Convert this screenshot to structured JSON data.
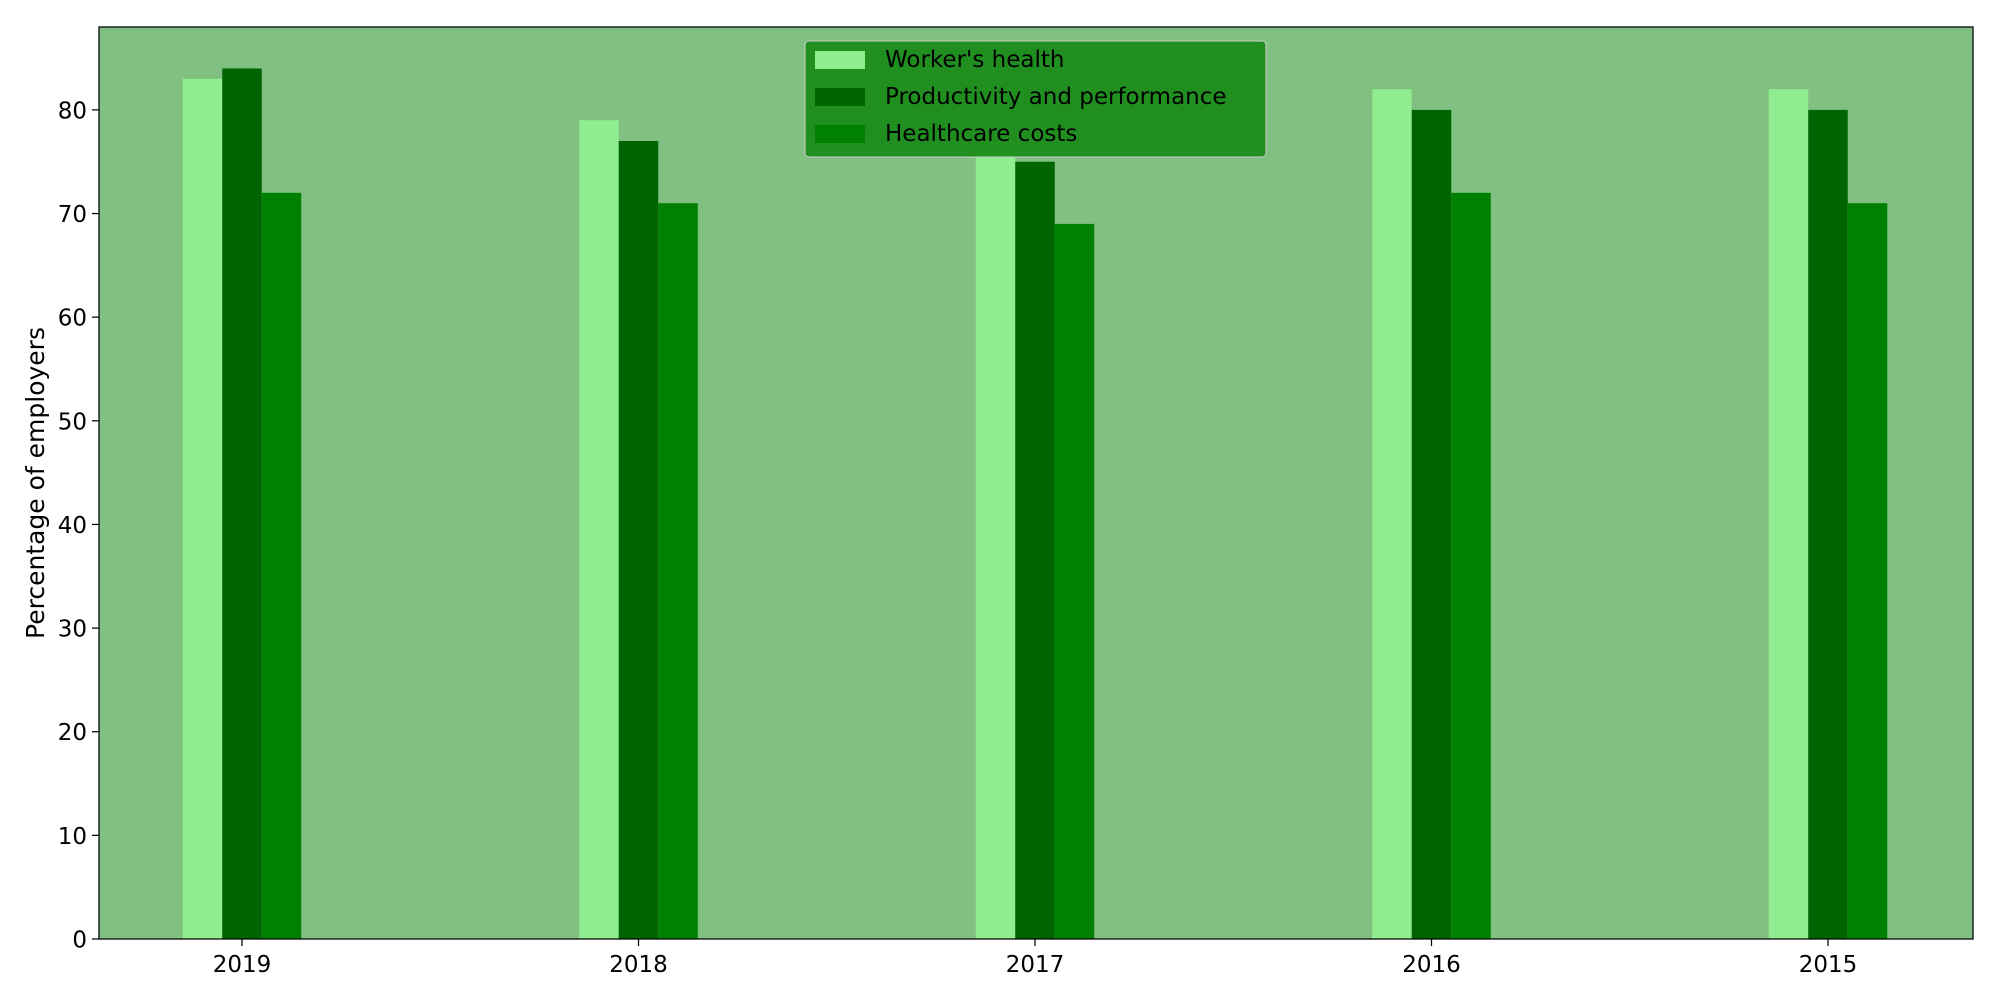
{
  "chart_data": {
    "type": "bar",
    "title": "",
    "xlabel": "",
    "ylabel": "Percentage of employers",
    "categories": [
      "2019",
      "2018",
      "2017",
      "2016",
      "2015"
    ],
    "ylim": [
      0,
      88
    ],
    "yticks": [
      0,
      10,
      20,
      30,
      40,
      50,
      60,
      70,
      80
    ],
    "grid": false,
    "legend_position": "top-center",
    "plot_background": "#80c080",
    "legend_background": "#1a8c1a",
    "series": [
      {
        "name": "Worker's health",
        "color": "#90ee90",
        "values": [
          83,
          79,
          77,
          82,
          82
        ]
      },
      {
        "name": "Productivity and performance",
        "color": "#006400",
        "values": [
          84,
          77,
          75,
          80,
          80
        ]
      },
      {
        "name": "Healthcare costs",
        "color": "#008000",
        "values": [
          72,
          71,
          69,
          72,
          71
        ]
      }
    ]
  }
}
